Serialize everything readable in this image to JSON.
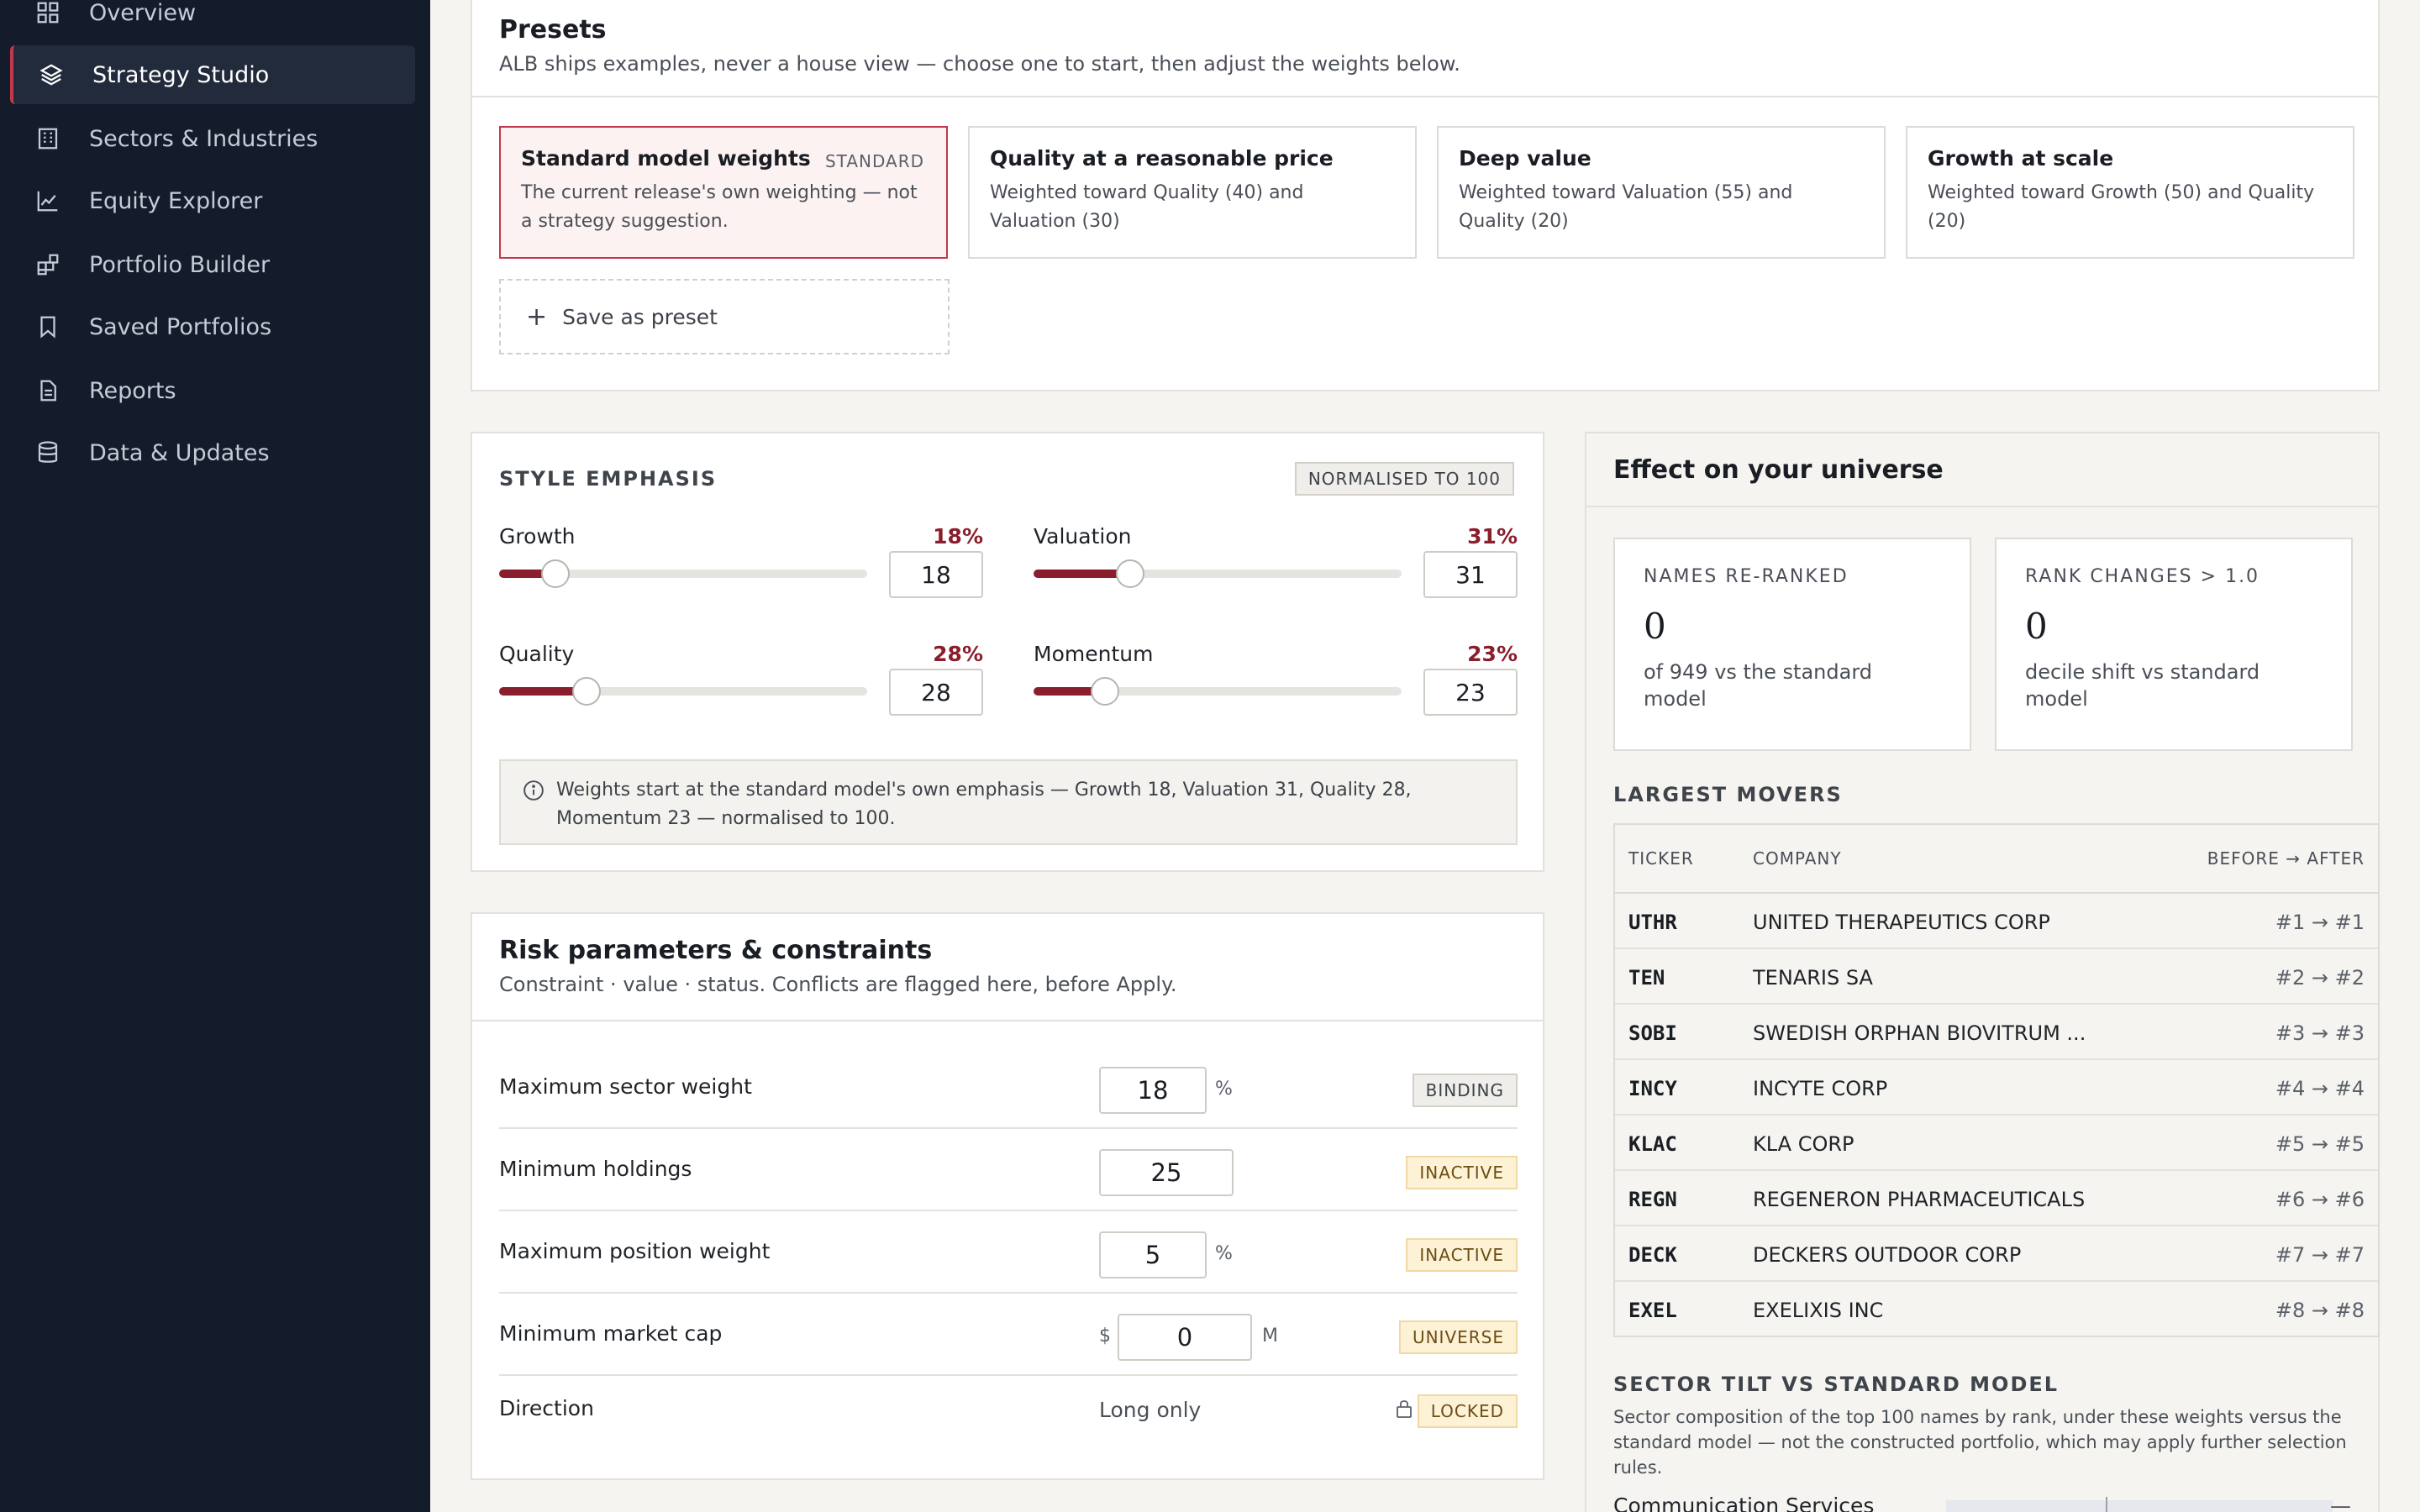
{
  "sidebar": {
    "items": [
      {
        "label": "Overview",
        "icon": "grid-icon",
        "active": false
      },
      {
        "label": "Strategy Studio",
        "icon": "layers-icon",
        "active": true
      },
      {
        "label": "Sectors & Industries",
        "icon": "building-icon",
        "active": false
      },
      {
        "label": "Equity Explorer",
        "icon": "line-chart-icon",
        "active": false
      },
      {
        "label": "Portfolio Builder",
        "icon": "blocks-icon",
        "active": false
      },
      {
        "label": "Saved Portfolios",
        "icon": "bookmark-icon",
        "active": false
      },
      {
        "label": "Reports",
        "icon": "document-icon",
        "active": false
      },
      {
        "label": "Data & Updates",
        "icon": "database-icon",
        "active": false
      }
    ]
  },
  "presets": {
    "title": "Presets",
    "subtitle": "ALB ships examples, never a house view — choose one to start, then adjust the weights below.",
    "cards": [
      {
        "title": "Standard model weights",
        "badge": "STANDARD",
        "desc": "The current release's own weighting — not a strategy suggestion.",
        "selected": true
      },
      {
        "title": "Quality at a reasonable price",
        "badge": "",
        "desc": "Weighted toward Quality (40) and Valuation (30)",
        "selected": false
      },
      {
        "title": "Deep value",
        "badge": "",
        "desc": "Weighted toward Valuation (55) and Quality (20)",
        "selected": false
      },
      {
        "title": "Growth at scale",
        "badge": "",
        "desc": "Weighted toward Growth (50) and Quality (20)",
        "selected": false
      }
    ],
    "save_label": "Save as preset"
  },
  "style": {
    "title": "STYLE EMPHASIS",
    "badge": "NORMALISED TO 100",
    "sliders": [
      {
        "name": "Growth",
        "pct": "18%",
        "value": "18",
        "fraction": 0.18
      },
      {
        "name": "Valuation",
        "pct": "31%",
        "value": "31",
        "fraction": 0.31
      },
      {
        "name": "Quality",
        "pct": "28%",
        "value": "28",
        "fraction": 0.28
      },
      {
        "name": "Momentum",
        "pct": "23%",
        "value": "23",
        "fraction": 0.23
      }
    ],
    "info": "Weights start at the standard model's own emphasis — Growth 18, Valuation 31, Quality 28, Momentum 23 — normalised to 100."
  },
  "risk": {
    "title": "Risk parameters & constraints",
    "subtitle": "Constraint · value · status. Conflicts are flagged here, before Apply.",
    "rows": [
      {
        "label": "Maximum sector weight",
        "value": "18",
        "prefix": "",
        "unit": "%",
        "status": "BINDING"
      },
      {
        "label": "Minimum holdings",
        "value": "25",
        "prefix": "",
        "unit": "",
        "status": "INACTIVE"
      },
      {
        "label": "Maximum position weight",
        "value": "5",
        "prefix": "",
        "unit": "%",
        "status": "INACTIVE"
      },
      {
        "label": "Minimum market cap",
        "value": "0",
        "prefix": "$",
        "unit": "M",
        "status": "UNIVERSE"
      },
      {
        "label": "Direction",
        "value": "Long only",
        "prefix": "",
        "unit": "",
        "status": "LOCKED"
      }
    ]
  },
  "effect": {
    "title": "Effect on your universe",
    "stats": [
      {
        "label": "NAMES RE-RANKED",
        "value": "0",
        "desc": "of 949 vs the standard model"
      },
      {
        "label": "RANK CHANGES > 1.0",
        "value": "0",
        "desc": "decile shift vs standard model"
      }
    ],
    "movers_title": "LARGEST MOVERS",
    "movers_headers": {
      "ticker": "TICKER",
      "company": "COMPANY",
      "change": "BEFORE → AFTER"
    },
    "movers": [
      {
        "ticker": "UTHR",
        "company": "UNITED THERAPEUTICS CORP",
        "change": "#1 → #1"
      },
      {
        "ticker": "TEN",
        "company": "TENARIS SA",
        "change": "#2 → #2"
      },
      {
        "ticker": "SOBI",
        "company": "SWEDISH ORPHAN BIOVITRUM ...",
        "change": "#3 → #3"
      },
      {
        "ticker": "INCY",
        "company": "INCYTE CORP",
        "change": "#4 → #4"
      },
      {
        "ticker": "KLAC",
        "company": "KLA CORP",
        "change": "#5 → #5"
      },
      {
        "ticker": "REGN",
        "company": "REGENERON PHARMACEUTICALS",
        "change": "#6 → #6"
      },
      {
        "ticker": "DECK",
        "company": "DECKERS OUTDOOR CORP",
        "change": "#7 → #7"
      },
      {
        "ticker": "EXEL",
        "company": "EXELIXIS INC",
        "change": "#8 → #8"
      }
    ],
    "tilt_title": "SECTOR TILT VS STANDARD MODEL",
    "tilt_desc": "Sector composition of the top 100 names by rank, under these weights versus the standard model — not the constructed portfolio, which may apply further selection rules.",
    "tilt_first_sector": "Communication Services"
  },
  "colors": {
    "accent": "#8b1e2d",
    "sidebar_bg": "#141c2b",
    "selected_border": "#c0394b"
  }
}
